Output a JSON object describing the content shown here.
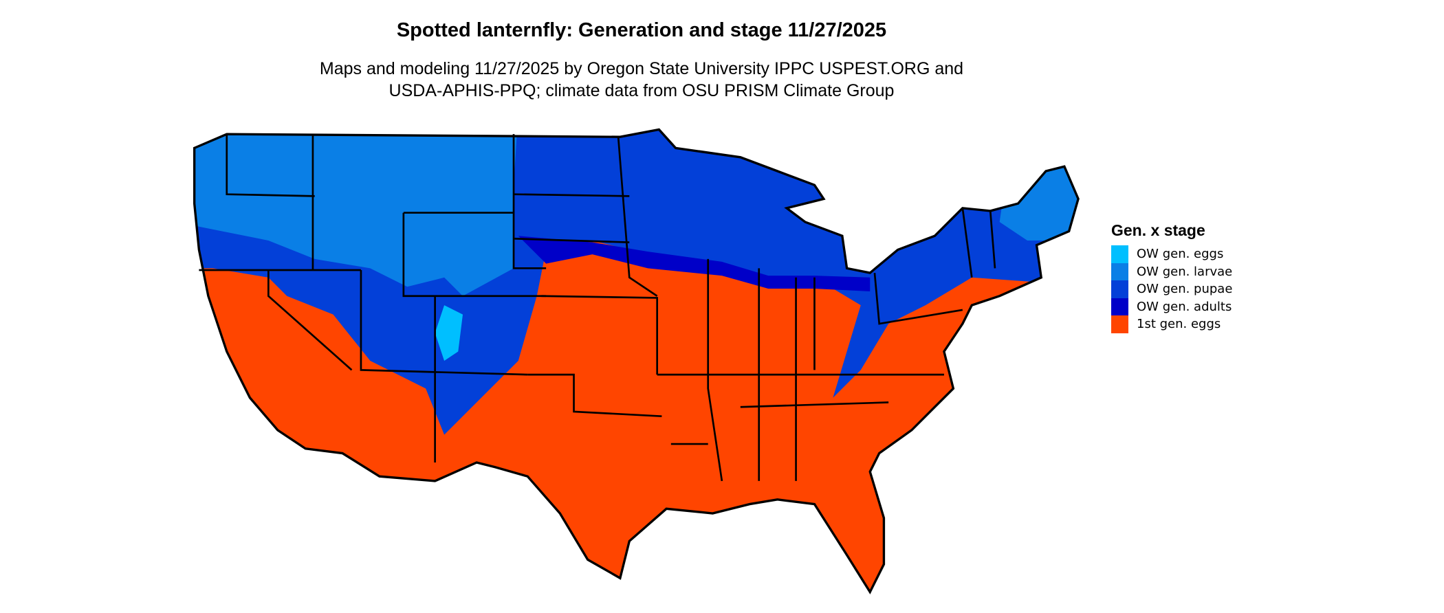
{
  "title": "Spotted lanternfly: Generation and stage 11/27/2025",
  "subtitle_line1": "Maps and modeling 11/27/2025 by Oregon State University IPPC USPEST.ORG and",
  "subtitle_line2": "USDA-APHIS-PPQ; climate data from OSU PRISM Climate Group",
  "legend": {
    "title": "Gen. x stage",
    "items": [
      {
        "label": "OW gen. eggs",
        "color": "#00BFFF"
      },
      {
        "label": "OW gen. larvae",
        "color": "#0A7FE6"
      },
      {
        "label": "OW gen. pupae",
        "color": "#0340D8"
      },
      {
        "label": "OW gen. adults",
        "color": "#0000C8"
      },
      {
        "label": "1st gen. eggs",
        "color": "#FF4500"
      }
    ]
  }
}
